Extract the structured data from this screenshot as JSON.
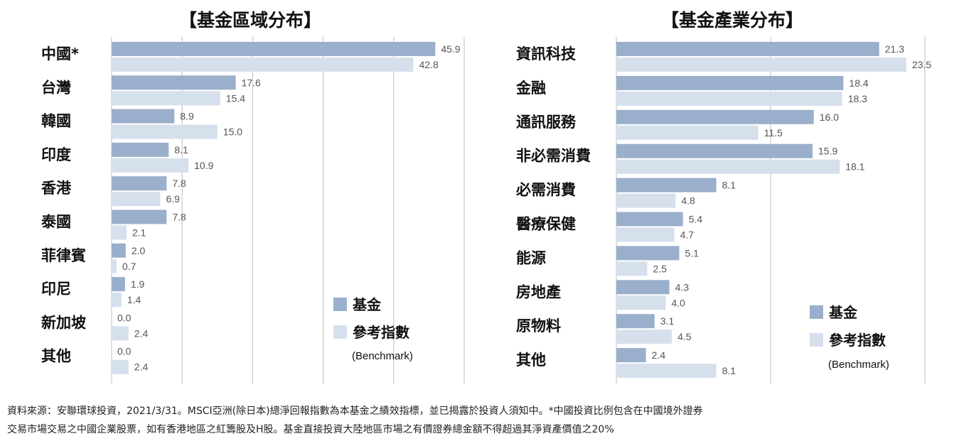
{
  "colors": {
    "fund": "#9aafcb",
    "benchmark": "#d6e0ed",
    "grid": "#bdbdbd"
  },
  "chart_data": [
    {
      "type": "bar",
      "orientation": "horizontal",
      "title": "【基金區域分布】",
      "categories": [
        "中國*",
        "台灣",
        "韓國",
        "印度",
        "香港",
        "泰國",
        "菲律賓",
        "印尼",
        "新加坡",
        "其他"
      ],
      "series": [
        {
          "name": "基金",
          "values": [
            45.9,
            17.6,
            8.9,
            8.1,
            7.8,
            7.8,
            2.0,
            1.9,
            0.0,
            0.0
          ]
        },
        {
          "name": "參考指數",
          "values": [
            42.8,
            15.4,
            15.0,
            10.9,
            6.9,
            2.1,
            0.7,
            1.4,
            2.4,
            2.4
          ]
        }
      ],
      "value_labels": {
        "fund": [
          "45.9",
          "17.6",
          "8.9",
          "8.1",
          "7.8",
          "7.8",
          "2.0",
          "1.9",
          "0.0",
          "0.0"
        ],
        "benchmark": [
          "42.8",
          "15.4",
          "15.0",
          "10.9",
          "6.9",
          "2.1",
          "0.7",
          "1.4",
          "2.4",
          "2.4"
        ]
      },
      "xlim": [
        0,
        50
      ],
      "grid": "vertical",
      "legend": {
        "position": "bottom-right",
        "fund": "基金",
        "benchmark": "參考指數",
        "benchmark_sub": "(Benchmark)"
      }
    },
    {
      "type": "bar",
      "orientation": "horizontal",
      "title": "【基金產業分布】",
      "categories": [
        "資訊科技",
        "金融",
        "通訊服務",
        "非必需消費",
        "必需消費",
        "醫療保健",
        "能源",
        "房地產",
        "原物料",
        "其他"
      ],
      "series": [
        {
          "name": "基金",
          "values": [
            21.3,
            18.4,
            16.0,
            15.9,
            8.1,
            5.4,
            5.1,
            4.3,
            3.1,
            2.4
          ]
        },
        {
          "name": "參考指數",
          "values": [
            23.5,
            18.3,
            11.5,
            18.1,
            4.8,
            4.7,
            2.5,
            4.0,
            4.5,
            8.1
          ]
        }
      ],
      "value_labels": {
        "fund": [
          "21.3",
          "18.4",
          "16.0",
          "15.9",
          "8.1",
          "5.4",
          "5.1",
          "4.3",
          "3.1",
          "2.4"
        ],
        "benchmark": [
          "23.5",
          "18.3",
          "11.5",
          "18.1",
          "4.8",
          "4.7",
          "2.5",
          "4.0",
          "4.5",
          "8.1"
        ]
      },
      "xlim": [
        0,
        25
      ],
      "grid": "vertical",
      "legend": {
        "position": "bottom-right",
        "fund": "基金",
        "benchmark": "參考指數",
        "benchmark_sub": "(Benchmark)"
      }
    }
  ],
  "footer": {
    "line1": "資料來源：安聯環球投資，2021/3/31。MSCI亞洲(除日本)總淨回報指數為本基金之績效指標，並已揭露於投資人須知中。*中國投資比例包含在中國境外證券",
    "line2": "交易市場交易之中國企業股票，如有香港地區之紅籌股及H股。基金直接投資大陸地區市場之有價證券總金額不得超過其淨資產價值之20%"
  }
}
